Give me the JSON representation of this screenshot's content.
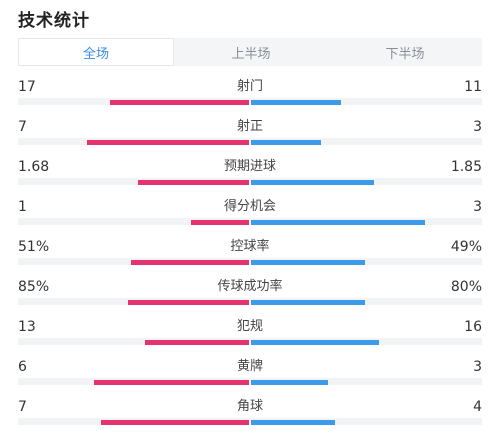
{
  "title": "技术统计",
  "tabs": [
    {
      "label": "全场",
      "active": true
    },
    {
      "label": "上半场",
      "active": false
    },
    {
      "label": "下半场",
      "active": false
    }
  ],
  "colors": {
    "home": "#e5336e",
    "away": "#3c9be8",
    "active_tab": "#3a8de6"
  },
  "stats": [
    {
      "label": "射门",
      "home": "17",
      "away": "11",
      "home_fraction": 0.6,
      "away_fraction": 0.39
    },
    {
      "label": "射正",
      "home": "7",
      "away": "3",
      "home_fraction": 0.7,
      "away_fraction": 0.3
    },
    {
      "label": "预期进球",
      "home": "1.68",
      "away": "1.85",
      "home_fraction": 0.48,
      "away_fraction": 0.53
    },
    {
      "label": "得分机会",
      "home": "1",
      "away": "3",
      "home_fraction": 0.25,
      "away_fraction": 0.75
    },
    {
      "label": "控球率",
      "home": "51%",
      "away": "49%",
      "home_fraction": 0.51,
      "away_fraction": 0.49
    },
    {
      "label": "传球成功率",
      "home": "85%",
      "away": "80%",
      "home_fraction": 0.52,
      "away_fraction": 0.49
    },
    {
      "label": "犯规",
      "home": "13",
      "away": "16",
      "home_fraction": 0.45,
      "away_fraction": 0.55
    },
    {
      "label": "黄牌",
      "home": "6",
      "away": "3",
      "home_fraction": 0.67,
      "away_fraction": 0.33
    },
    {
      "label": "角球",
      "home": "7",
      "away": "4",
      "home_fraction": 0.64,
      "away_fraction": 0.36
    }
  ]
}
